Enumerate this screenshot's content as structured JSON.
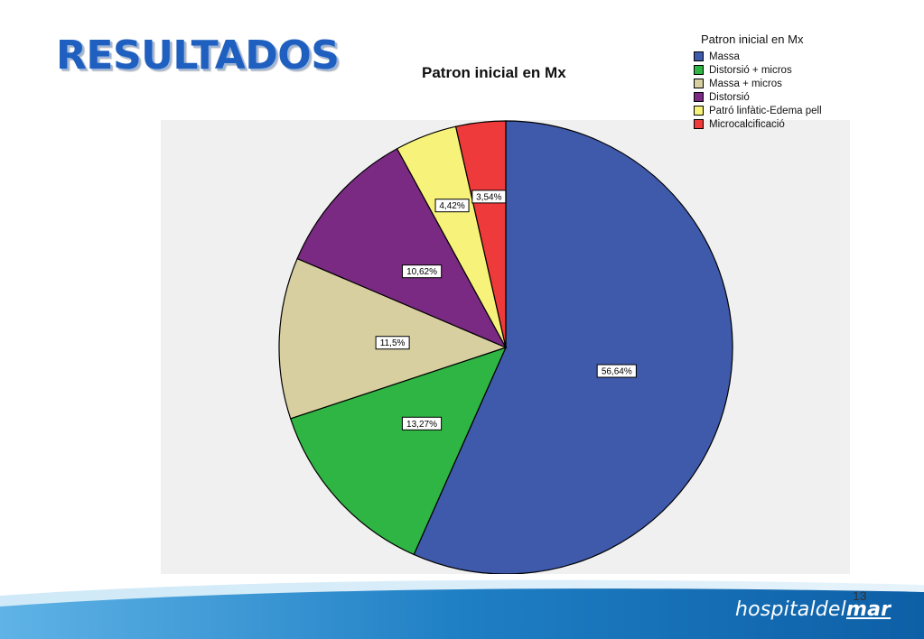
{
  "slide": {
    "heading": "RESULTADOS",
    "page_number": "13",
    "logo": {
      "part1": "hospital",
      "part2": "del",
      "part3": "mar"
    }
  },
  "legend": {
    "title": "Patron inicial en Mx"
  },
  "chart_data": {
    "type": "pie",
    "title": "Patron inicial en Mx",
    "legend_title": "Patron inicial en Mx",
    "legend_position": "top-right",
    "start_angle_deg": 0,
    "direction": "clockwise",
    "slices": [
      {
        "label": "Massa",
        "value": 56.64,
        "display": "56,64%",
        "color": "#3f5aab"
      },
      {
        "label": "Distorsió + micros",
        "value": 13.27,
        "display": "13,27%",
        "color": "#2fb543"
      },
      {
        "label": "Massa + micros",
        "value": 11.5,
        "display": "11,5%",
        "color": "#d7cfa0"
      },
      {
        "label": "Distorsió",
        "value": 10.62,
        "display": "10,62%",
        "color": "#7a2a82"
      },
      {
        "label": "Patró linfàtic-Edema pell",
        "value": 4.42,
        "display": "4,42%",
        "color": "#f7f37a"
      },
      {
        "label": "Microcalcificació",
        "value": 3.54,
        "display": "3,54%",
        "color": "#ee3a3a"
      }
    ]
  },
  "colors": {
    "heading": "#1f5fbf",
    "plot_background": "#f0f0f0",
    "footer_wave": "#1f7fc4"
  }
}
